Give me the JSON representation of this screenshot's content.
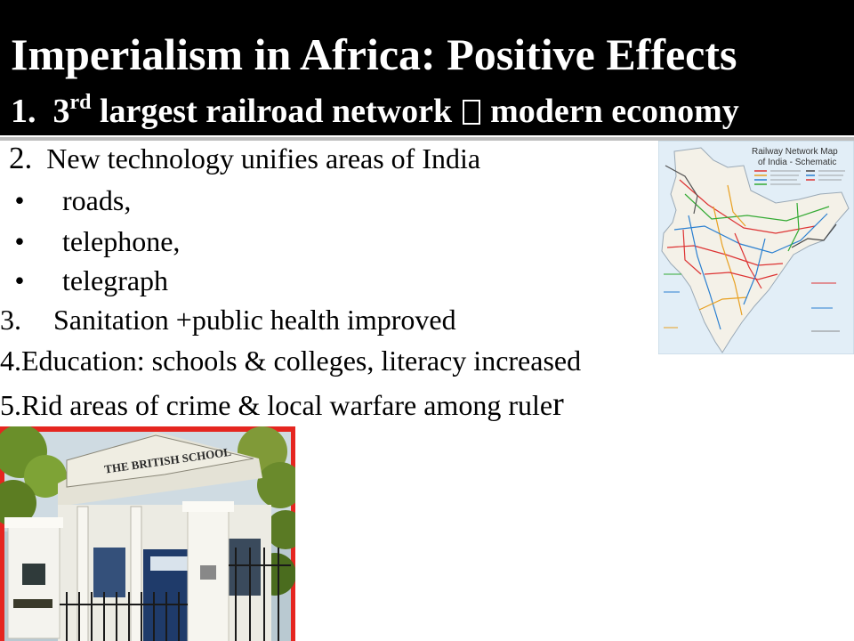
{
  "slide": {
    "title": "Imperialism in Africa: Positive Effects",
    "point1": {
      "number": "1.",
      "ordinal": "3",
      "ordinal_suffix": "rd",
      "text_before": "largest railroad network",
      "text_after": "modern economy"
    },
    "point2": {
      "number": "2.",
      "text": "New technology unifies areas of India"
    },
    "bullets": [
      {
        "marker": "•",
        "text": "roads,"
      },
      {
        "marker": "•",
        "text": "telephone,"
      },
      {
        "marker": "•",
        "text": "telegraph"
      }
    ],
    "point3": {
      "number": "3.",
      "text": "Sanitation +public health improved"
    },
    "point4": {
      "number": "4.",
      "text": "Education: schools & colleges, literacy increased"
    },
    "point5": {
      "number": "5.",
      "text_main": "Rid areas of crime & local warfare among rule",
      "text_tail": "r"
    }
  },
  "railway_map": {
    "title_line1": "Railway Network Map",
    "title_line2": "of India - Schematic"
  },
  "school_photo": {
    "sign_text": "THE BRITISH SCHOOL",
    "frame_color": "#e52620"
  }
}
